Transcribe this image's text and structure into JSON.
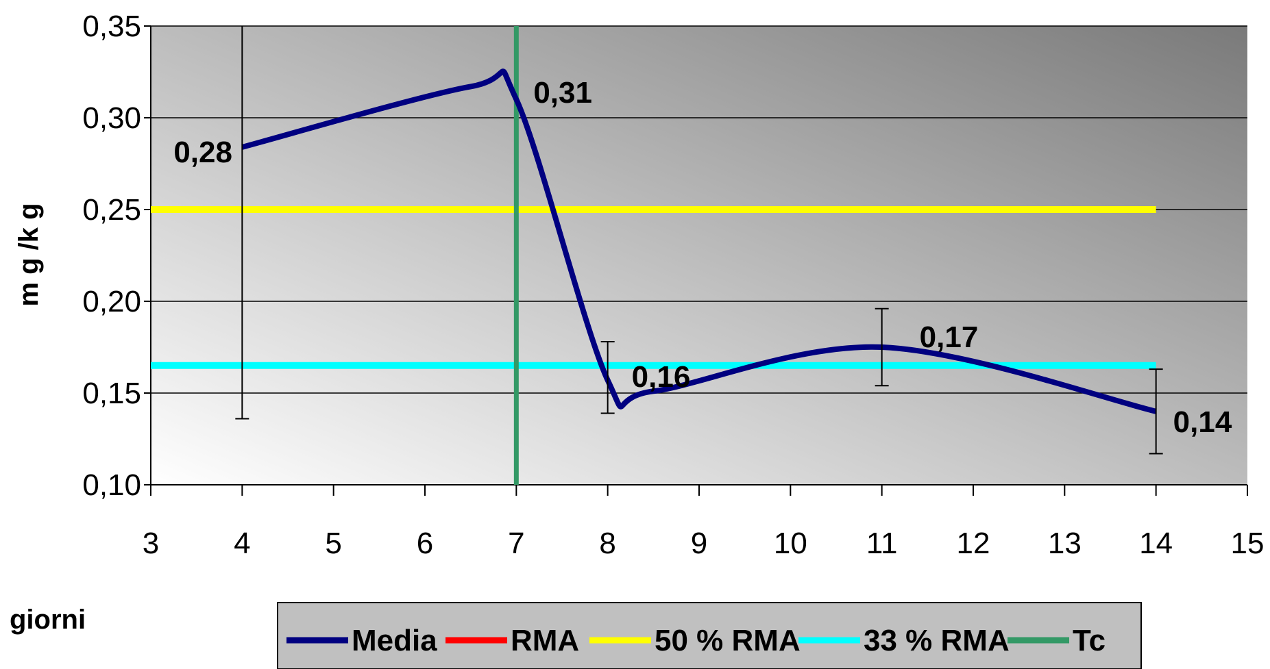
{
  "chart_data": {
    "type": "line",
    "ylabel": "m g /k g",
    "xlabel": "giorni",
    "xlim": [
      3,
      15
    ],
    "ylim": [
      0.1,
      0.35
    ],
    "x_ticks": [
      "3",
      "4",
      "5",
      "6",
      "7",
      "8",
      "9",
      "10",
      "11",
      "12",
      "13",
      "14",
      "15"
    ],
    "y_ticks": [
      "0,10",
      "0,15",
      "0,20",
      "0,25",
      "0,30",
      "0,35"
    ],
    "grid": "horizontal",
    "legend_position": "bottom",
    "colors": {
      "Media": "#000080",
      "RMA": "#ff0000",
      "50 % RMA": "#ffff00",
      "33 % RMA": "#00ffff",
      "Tc": "#339966"
    },
    "series": [
      {
        "name": "Media",
        "x": [
          4,
          8,
          11,
          14
        ],
        "values": [
          0.284,
          0.157,
          0.175,
          0.14
        ],
        "labels": [
          "0,28",
          "0,16",
          "0,17",
          "0,14"
        ],
        "error_low": [
          0.136,
          0.139,
          0.154,
          0.117
        ],
        "error_high": [
          0.35,
          0.178,
          0.196,
          0.163
        ]
      },
      {
        "name": "RMA",
        "values": []
      },
      {
        "name": "50 % RMA",
        "x": [
          3,
          14
        ],
        "values": [
          0.25,
          0.25
        ]
      },
      {
        "name": "33 % RMA",
        "x": [
          3,
          14
        ],
        "values": [
          0.165,
          0.165
        ]
      },
      {
        "name": "Tc",
        "x": [
          7,
          7
        ],
        "values": [
          0.1,
          0.35
        ]
      }
    ],
    "annotations": [
      {
        "x": 7,
        "y": 0.31,
        "text": "0,31"
      }
    ]
  }
}
